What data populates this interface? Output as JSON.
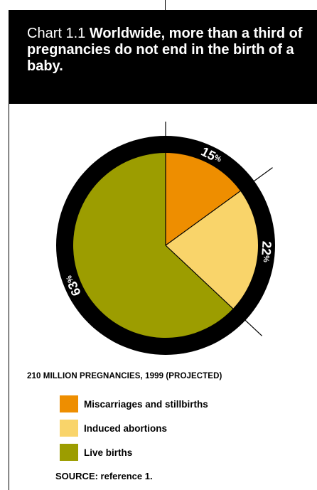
{
  "header": {
    "prefix": "Chart 1.1 ",
    "title": "Worldwide, more than a third of pregnancies do not end in the birth of a baby."
  },
  "chart_data": {
    "type": "pie",
    "title": "Worldwide, more than a third of pregnancies do not end in the birth of a baby.",
    "caption": "210 MILLION PREGNANCIES, 1999 (PROJECTED)",
    "slices": [
      {
        "label": "Miscarriages and stillbirths",
        "value": 15,
        "display": "15",
        "color": "#EE8E00"
      },
      {
        "label": "Induced abortions",
        "value": 22,
        "display": "22",
        "color": "#F9D46A"
      },
      {
        "label": "Live births",
        "value": 63,
        "display": "63",
        "color": "#9C9D00"
      }
    ],
    "unit_symbol": "%",
    "ring_color": "#000000",
    "source": "SOURCE: reference 1."
  }
}
